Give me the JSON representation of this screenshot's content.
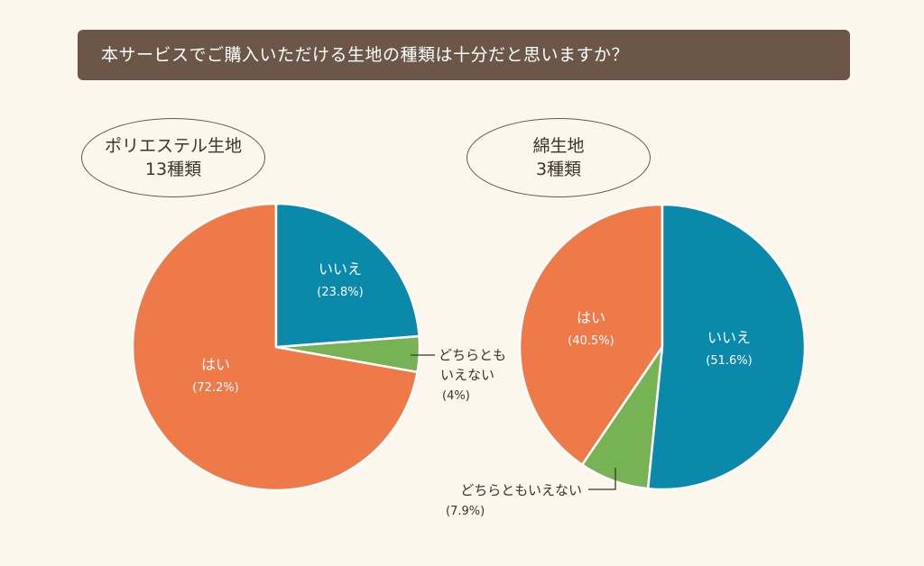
{
  "question": "本サービスでご購入いただける生地の種類は十分だと思いますか？",
  "chart_data": [
    {
      "type": "pie",
      "title_line1": "ポリエステル生地",
      "title_line2": "13種類",
      "slices": [
        {
          "label": "いいえ",
          "value": 23.8,
          "value_text": "(23.8%)",
          "color": "#0a89ab"
        },
        {
          "label": "どちらとも",
          "label2": "いえない",
          "value": 4,
          "value_text": "(4%)",
          "color": "#77b255"
        },
        {
          "label": "はい",
          "value": 72.2,
          "value_text": "(72.2%)",
          "color": "#ef7a49"
        }
      ]
    },
    {
      "type": "pie",
      "title_line1": "綿生地",
      "title_line2": "3種類",
      "slices": [
        {
          "label": "いいえ",
          "value": 51.6,
          "value_text": "(51.6%)",
          "color": "#0a89ab"
        },
        {
          "label": "どちらともいえない",
          "value": 7.9,
          "value_text": "(7.9%)",
          "color": "#77b255"
        },
        {
          "label": "はい",
          "value": 40.5,
          "value_text": "(40.5%)",
          "color": "#ef7a49"
        }
      ]
    }
  ]
}
